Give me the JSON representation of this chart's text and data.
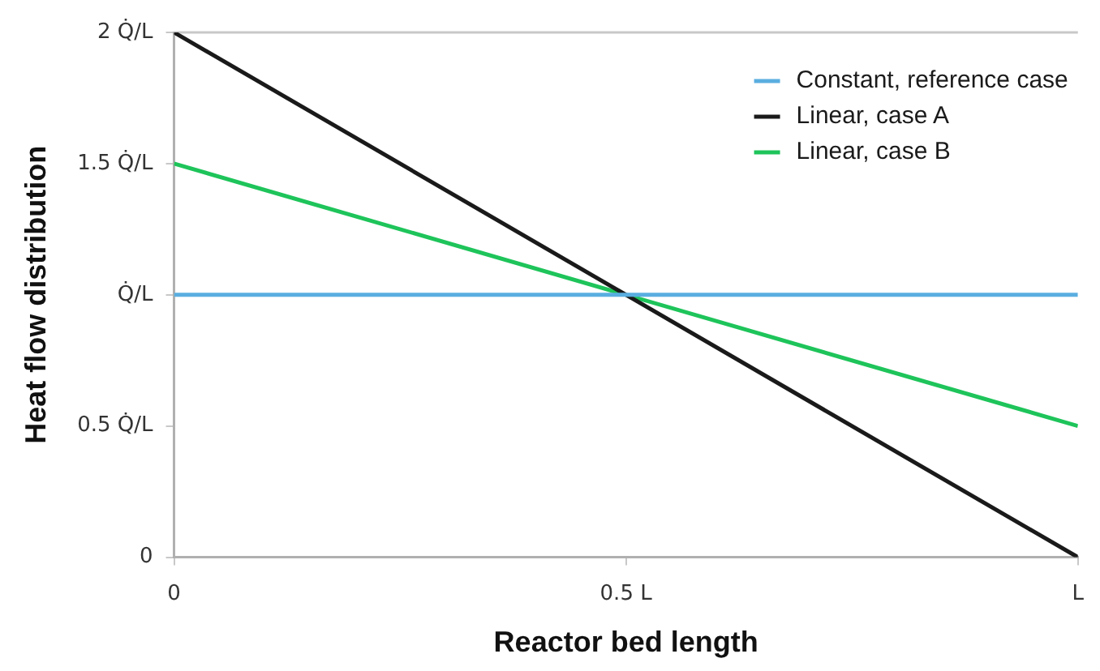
{
  "chart_data": {
    "type": "line",
    "xlabel": "Reactor bed length",
    "ylabel": "Heat flow distribution",
    "xlim": [
      0,
      1
    ],
    "xticks": [
      0,
      {
        "value": 0.5,
        "label": "0.5 L"
      },
      {
        "value": 1,
        "label": "L"
      }
    ],
    "ylim": [
      0,
      2
    ],
    "yticks": [
      0,
      {
        "value": 0.5,
        "label": "0.5 Q̇/L"
      },
      {
        "value": 1,
        "label": "Q̇/L"
      },
      {
        "value": 1.5,
        "label": "1.5 Q̇/L"
      },
      {
        "value": 2,
        "label": "2 Q̇/L"
      }
    ],
    "x": [
      0,
      1
    ],
    "series": [
      {
        "name": "Constant, reference case",
        "color": "#5aaee0",
        "values": [
          1,
          1
        ]
      },
      {
        "name": "Linear, case A",
        "color": "#1a1a1a",
        "values": [
          2,
          0
        ]
      },
      {
        "name": "Linear, case B",
        "color": "#1ec45a",
        "values": [
          1.5,
          0.5
        ]
      }
    ],
    "legend": "top right",
    "grid": false,
    "marker": "none",
    "line_style": "solid"
  }
}
